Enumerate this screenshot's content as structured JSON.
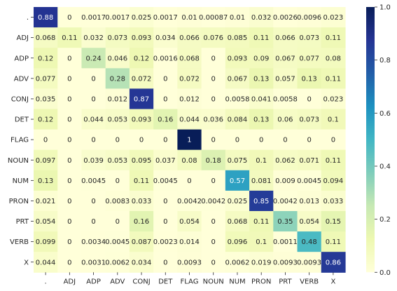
{
  "chart_data": {
    "type": "heatmap",
    "x_categories": [
      ".",
      "ADJ",
      "ADP",
      "ADV",
      "CONJ",
      "DET",
      "FLAG",
      "NOUN",
      "NUM",
      "PRON",
      "PRT",
      "VERB",
      "X"
    ],
    "y_categories": [
      ".",
      "ADJ",
      "ADP",
      "ADV",
      "CONJ",
      "DET",
      "FLAG",
      "NOUN",
      "NUM",
      "PRON",
      "PRT",
      "VERB",
      "X"
    ],
    "values": [
      [
        0.88,
        0,
        0.0017,
        0.0017,
        0.025,
        0.0017,
        0.01,
        0.00087,
        0.01,
        0.032,
        0.0026,
        0.0096,
        0.023
      ],
      [
        0.068,
        0.11,
        0.032,
        0.073,
        0.093,
        0.034,
        0.066,
        0.076,
        0.085,
        0.11,
        0.066,
        0.073,
        0.11
      ],
      [
        0.12,
        0,
        0.24,
        0.046,
        0.12,
        0.0016,
        0.068,
        0,
        0.093,
        0.09,
        0.067,
        0.077,
        0.08
      ],
      [
        0.077,
        0,
        0,
        0.28,
        0.072,
        0,
        0.072,
        0,
        0.067,
        0.13,
        0.057,
        0.13,
        0.11
      ],
      [
        0.035,
        0,
        0,
        0.012,
        0.87,
        0,
        0.012,
        0,
        0.0058,
        0.041,
        0.0058,
        0,
        0.023
      ],
      [
        0.12,
        0,
        0.044,
        0.053,
        0.093,
        0.16,
        0.044,
        0.036,
        0.084,
        0.13,
        0.06,
        0.073,
        0.1
      ],
      [
        0,
        0,
        0,
        0,
        0,
        0,
        1,
        0,
        0,
        0,
        0,
        0,
        0
      ],
      [
        0.097,
        0,
        0.039,
        0.053,
        0.095,
        0.037,
        0.08,
        0.18,
        0.075,
        0.1,
        0.062,
        0.071,
        0.11
      ],
      [
        0.13,
        0,
        0.0045,
        0,
        0.11,
        0.0045,
        0,
        0,
        0.57,
        0.081,
        0.009,
        0.0045,
        0.094
      ],
      [
        0.021,
        0,
        0,
        0.0083,
        0.033,
        0,
        0.0042,
        0.0042,
        0.025,
        0.85,
        0.0042,
        0.013,
        0.033
      ],
      [
        0.054,
        0,
        0,
        0,
        0.16,
        0,
        0.054,
        0,
        0.068,
        0.11,
        0.35,
        0.054,
        0.15
      ],
      [
        0.099,
        0,
        0.0034,
        0.0045,
        0.087,
        0.0023,
        0.014,
        0,
        0.096,
        0.1,
        0.0011,
        0.48,
        0.11
      ],
      [
        0.044,
        0,
        0.0031,
        0.0062,
        0.034,
        0,
        0.0093,
        0,
        0.0062,
        0.019,
        0.0093,
        0.0093,
        0.86
      ]
    ],
    "colorbar": {
      "range": [
        0,
        1
      ],
      "ticks": [
        0.0,
        0.2,
        0.4,
        0.6,
        0.8,
        1.0
      ],
      "tick_labels": [
        "0.0",
        "0.2",
        "0.4",
        "0.6",
        "0.8",
        "1.0"
      ],
      "colormap": "YlGnBu"
    },
    "title": "",
    "xlabel": "",
    "ylabel": "",
    "grid": false
  }
}
